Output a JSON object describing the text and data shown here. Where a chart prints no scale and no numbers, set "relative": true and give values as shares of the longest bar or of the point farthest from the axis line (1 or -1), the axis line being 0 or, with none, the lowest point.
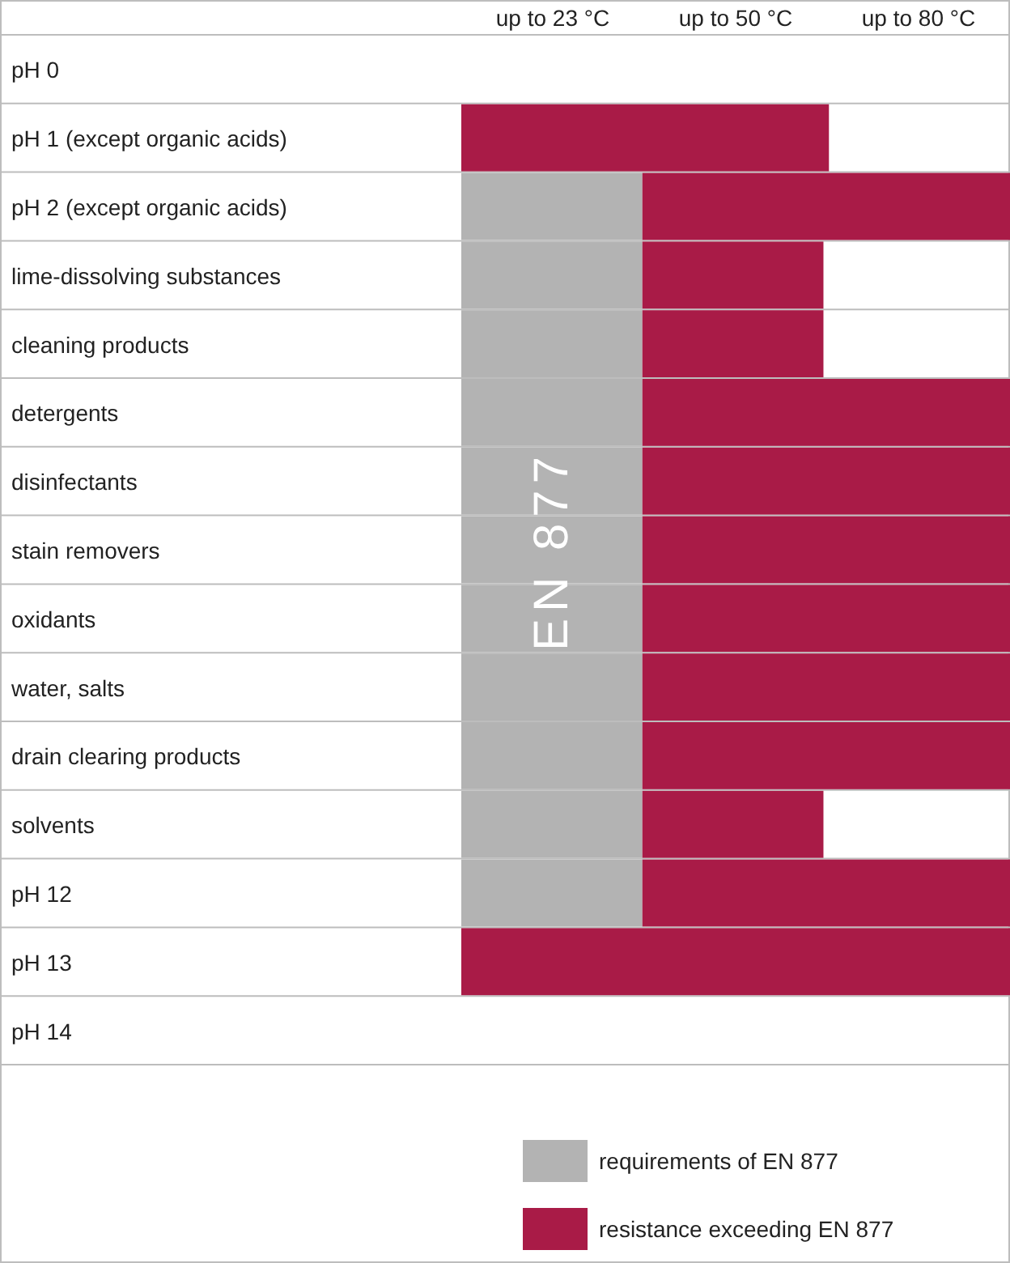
{
  "chart_data": {
    "type": "bar",
    "orientation": "horizontal",
    "stacked": true,
    "relative": true,
    "categories": [
      "pH 0",
      "pH 1 (except organic acids)",
      "pH 2 (except organic acids)",
      "lime-dissolving substances",
      "cleaning products",
      "detergents",
      "disinfectants",
      "stain removers",
      "oxidants",
      "water, salts",
      "drain clearing products",
      "solvents",
      "pH 12",
      "pH 13",
      "pH 14"
    ],
    "series": [
      {
        "name": "requirements of EN 877",
        "color": "#b3b3b3",
        "values": [
          null,
          null,
          0.33,
          0.33,
          0.33,
          0.33,
          0.33,
          0.33,
          0.33,
          0.33,
          0.33,
          0.33,
          0.33,
          null,
          null
        ]
      },
      {
        "name": "resistance exceeding EN 877",
        "color": "#a91b47",
        "values": [
          null,
          0.67,
          0.67,
          0.33,
          0.33,
          0.67,
          0.67,
          0.67,
          0.67,
          0.67,
          0.67,
          0.33,
          0.67,
          1,
          null
        ]
      }
    ],
    "grid": "y",
    "legend": "bottom",
    "annotations": [
      "up to 23 °C",
      "up to 50 °C",
      "up to 80 °C",
      "EN 877"
    ]
  }
}
